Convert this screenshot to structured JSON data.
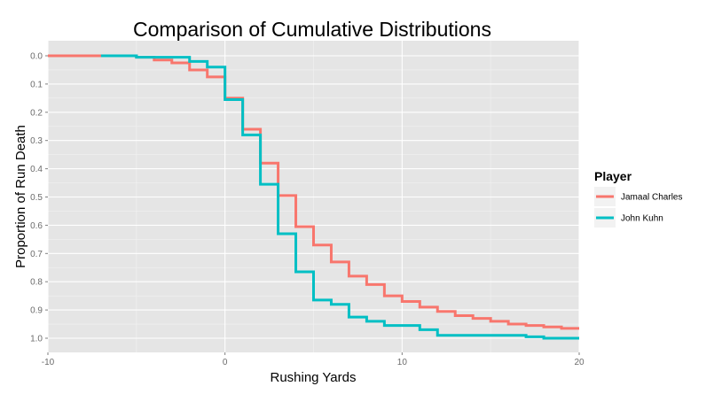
{
  "chart_data": {
    "type": "line",
    "step": true,
    "title": "Comparison of Cumulative Distributions",
    "xlabel": "Rushing Yards",
    "ylabel": "Proportion of Run Death",
    "xlim": [
      -10,
      20
    ],
    "ylim": [
      0,
      1.0
    ],
    "y_reversed": true,
    "x_ticks": [
      "-10",
      "0",
      "10",
      "20"
    ],
    "y_ticks": [
      "0.0",
      "0.1",
      "0.2",
      "0.3",
      "0.4",
      "0.5",
      "0.6",
      "0.7",
      "0.8",
      "0.9",
      "1.0"
    ],
    "grid": true,
    "background": "#e5e5e5",
    "legend": {
      "title": "Player",
      "position": "right",
      "entries": [
        "Jamaal Charles",
        "John Kuhn"
      ]
    },
    "series": [
      {
        "name": "Jamaal Charles",
        "color": "#f8766d",
        "points": [
          [
            -10,
            0.0
          ],
          [
            -5,
            0.005
          ],
          [
            -4,
            0.015
          ],
          [
            -3,
            0.025
          ],
          [
            -2,
            0.05
          ],
          [
            -1,
            0.075
          ],
          [
            0,
            0.15
          ],
          [
            1,
            0.26
          ],
          [
            2,
            0.38
          ],
          [
            3,
            0.495
          ],
          [
            4,
            0.605
          ],
          [
            5,
            0.67
          ],
          [
            6,
            0.73
          ],
          [
            7,
            0.78
          ],
          [
            8,
            0.81
          ],
          [
            9,
            0.85
          ],
          [
            10,
            0.87
          ],
          [
            11,
            0.89
          ],
          [
            12,
            0.905
          ],
          [
            13,
            0.92
          ],
          [
            14,
            0.93
          ],
          [
            15,
            0.94
          ],
          [
            16,
            0.95
          ],
          [
            17,
            0.955
          ],
          [
            18,
            0.96
          ],
          [
            19,
            0.965
          ],
          [
            20,
            0.965
          ]
        ]
      },
      {
        "name": "John Kuhn",
        "color": "#00bfc4",
        "points": [
          [
            -7,
            0.0
          ],
          [
            -5,
            0.005
          ],
          [
            -2,
            0.02
          ],
          [
            -1,
            0.04
          ],
          [
            0,
            0.155
          ],
          [
            1,
            0.28
          ],
          [
            2,
            0.455
          ],
          [
            3,
            0.63
          ],
          [
            4,
            0.765
          ],
          [
            5,
            0.865
          ],
          [
            6,
            0.88
          ],
          [
            7,
            0.925
          ],
          [
            8,
            0.94
          ],
          [
            9,
            0.955
          ],
          [
            11,
            0.97
          ],
          [
            12,
            0.99
          ],
          [
            17,
            0.995
          ],
          [
            18,
            1.0
          ],
          [
            20,
            1.0
          ]
        ]
      }
    ]
  }
}
